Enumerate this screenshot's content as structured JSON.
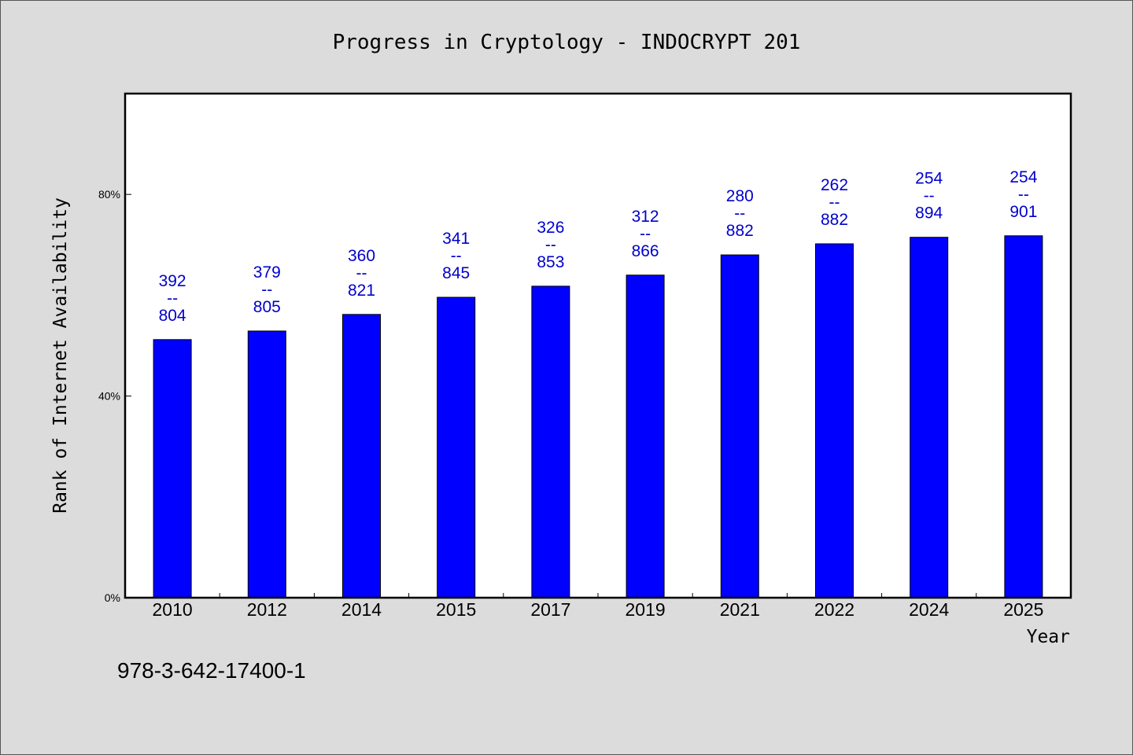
{
  "chart_data": {
    "type": "bar",
    "title": "Progress in Cryptology - INDOCRYPT 201",
    "xlabel": "Year",
    "ylabel": "Rank of Internet Availability",
    "ylim": [
      0,
      100
    ],
    "yticks": [
      {
        "value": 0,
        "label": "0%"
      },
      {
        "value": 40,
        "label": "40%"
      },
      {
        "value": 80,
        "label": "80%"
      }
    ],
    "categories": [
      "2010",
      "2012",
      "2014",
      "2015",
      "2017",
      "2019",
      "2021",
      "2022",
      "2024",
      "2025"
    ],
    "values": [
      51.2,
      52.9,
      56.2,
      59.6,
      61.8,
      64.0,
      68.0,
      70.2,
      71.5,
      71.8
    ],
    "labels": [
      [
        "392",
        "--",
        "804"
      ],
      [
        "379",
        "--",
        "805"
      ],
      [
        "360",
        "--",
        "821"
      ],
      [
        "341",
        "--",
        "845"
      ],
      [
        "326",
        "--",
        "853"
      ],
      [
        "312",
        "--",
        "866"
      ],
      [
        "280",
        "--",
        "882"
      ],
      [
        "262",
        "--",
        "882"
      ],
      [
        "254",
        "--",
        "894"
      ],
      [
        "254",
        "--",
        "901"
      ]
    ],
    "bar_color": "#0000ff",
    "label_color": "#0000cc",
    "grid": false,
    "legend": "none"
  },
  "footer": {
    "isbn": "978-3-642-17400-1"
  },
  "colors": {
    "background": "#dcdcdc",
    "plot_background": "#ffffff"
  }
}
